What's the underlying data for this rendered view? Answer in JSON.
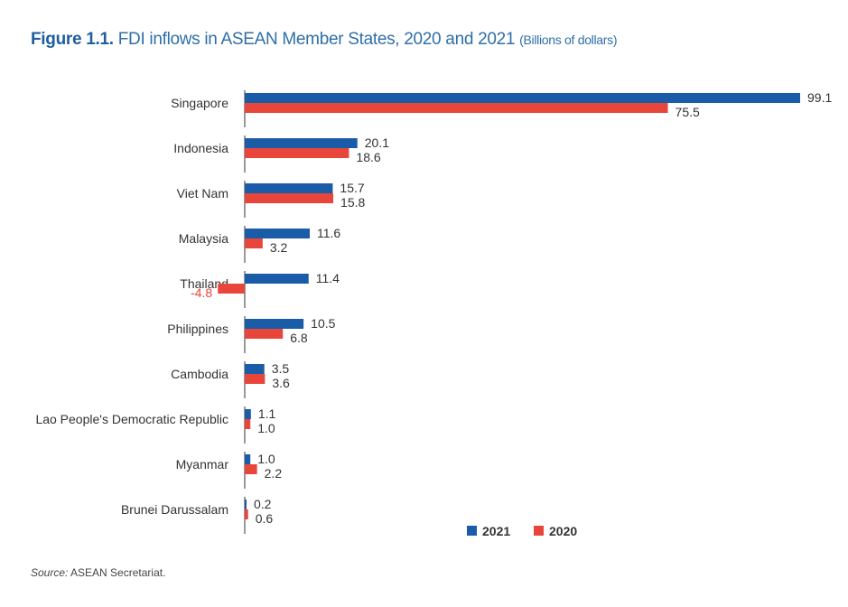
{
  "title": {
    "figure_label": "Figure 1.1.",
    "text": "FDI inflows in ASEAN Member States, 2020 and 2021",
    "units": "(Billions of dollars)"
  },
  "source": {
    "label": "Source:",
    "text": "ASEAN Secretariat."
  },
  "chart_data": {
    "type": "bar",
    "orientation": "horizontal",
    "title": "FDI inflows in ASEAN Member States, 2020 and 2021",
    "subtitle": "(Billions of dollars)",
    "xlabel": "",
    "ylabel": "",
    "grid": false,
    "legend_position": "bottom-right",
    "categories": [
      "Singapore",
      "Indonesia",
      "Viet Nam",
      "Malaysia",
      "Thailand",
      "Philippines",
      "Cambodia",
      "Lao People's Democratic Republic",
      "Myanmar",
      "Brunei Darussalam"
    ],
    "series": [
      {
        "name": "2021",
        "color": "#1a5ca8",
        "values": [
          99.1,
          20.1,
          15.7,
          11.6,
          11.4,
          10.5,
          3.5,
          1.1,
          1.0,
          0.2
        ]
      },
      {
        "name": "2020",
        "color": "#e8463a",
        "values": [
          75.5,
          18.6,
          15.8,
          3.2,
          -4.8,
          6.8,
          3.6,
          1.0,
          2.2,
          0.6
        ]
      }
    ],
    "value_labels": {
      "2021": [
        "99.1",
        "20.1",
        "15.7",
        "11.6",
        "11.4",
        "10.5",
        "3.5",
        "1.1",
        "1.0",
        "0.2"
      ],
      "2020": [
        "75.5",
        "18.6",
        "15.8",
        "3.2",
        "-4.8",
        "6.8",
        "3.6",
        "1.0",
        "2.2",
        "0.6"
      ]
    },
    "xlim": [
      -5,
      100
    ]
  }
}
